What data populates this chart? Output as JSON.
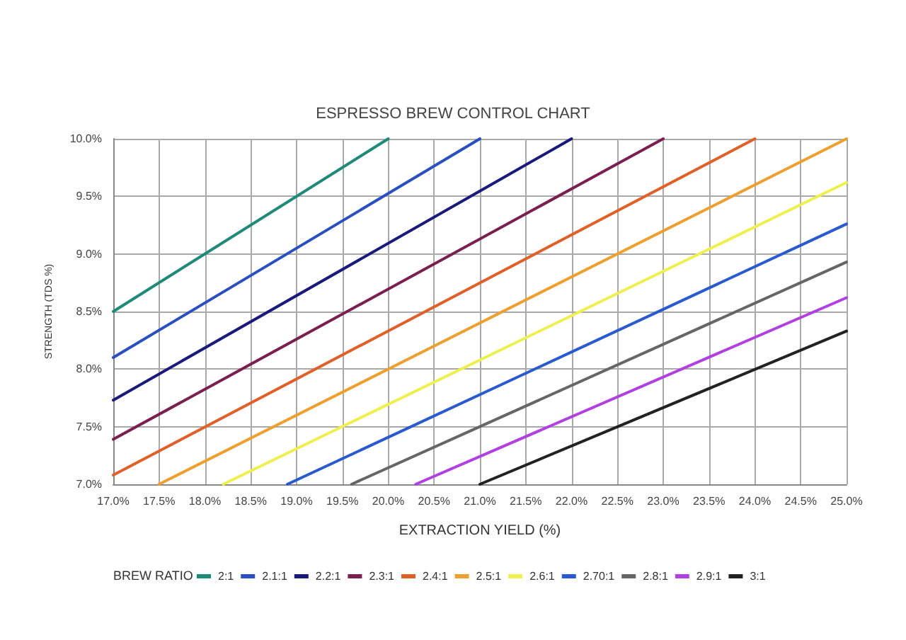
{
  "chart_data": {
    "type": "line",
    "title": "ESPRESSO BREW CONTROL CHART",
    "xlabel": "EXTRACTION YIELD (%)",
    "ylabel": "STRENGTH (TDS %)",
    "legend_title": "BREW RATIO",
    "legend": "bottom",
    "grid": true,
    "marker": "none",
    "line_style": "solid",
    "xlim": [
      17,
      25
    ],
    "ylim": [
      7,
      10
    ],
    "xticks": [
      {
        "value": 17,
        "label": "17.0%"
      },
      {
        "value": 17.5,
        "label": "17.5%"
      },
      {
        "value": 18,
        "label": "18.0%"
      },
      {
        "value": 18.5,
        "label": "18.5%"
      },
      {
        "value": 19,
        "label": "19.0%"
      },
      {
        "value": 19.5,
        "label": "19.5%"
      },
      {
        "value": 20,
        "label": "20.0%"
      },
      {
        "value": 20.5,
        "label": "20.5%"
      },
      {
        "value": 21,
        "label": "21.0%"
      },
      {
        "value": 21.5,
        "label": "21.5%"
      },
      {
        "value": 22,
        "label": "22.0%"
      },
      {
        "value": 22.5,
        "label": "22.5%"
      },
      {
        "value": 23,
        "label": "23.0%"
      },
      {
        "value": 23.5,
        "label": "23.5%"
      },
      {
        "value": 24,
        "label": "24.0%"
      },
      {
        "value": 24.5,
        "label": "24.5%"
      },
      {
        "value": 25,
        "label": "25.0%"
      }
    ],
    "yticks": [
      {
        "value": 7,
        "label": "7.0%"
      },
      {
        "value": 7.5,
        "label": "7.5%"
      },
      {
        "value": 8,
        "label": "8.0%"
      },
      {
        "value": 8.5,
        "label": "8.5%"
      },
      {
        "value": 9,
        "label": "9.0%"
      },
      {
        "value": 9.5,
        "label": "9.5%"
      },
      {
        "value": 10,
        "label": "10.0%"
      }
    ],
    "series": [
      {
        "name": "2:1",
        "color": "#1f8a7a",
        "x": [
          17,
          20
        ],
        "values": [
          8.5,
          10
        ]
      },
      {
        "name": "2.1:1",
        "color": "#2a4fc0",
        "x": [
          17,
          21
        ],
        "values": [
          8.1,
          10
        ]
      },
      {
        "name": "2.2:1",
        "color": "#1a1a7a",
        "x": [
          17,
          22
        ],
        "values": [
          7.73,
          10
        ]
      },
      {
        "name": "2.3:1",
        "color": "#7a2050",
        "x": [
          17,
          23
        ],
        "values": [
          7.39,
          10
        ]
      },
      {
        "name": "2.4:1",
        "color": "#e0602a",
        "x": [
          17,
          24
        ],
        "values": [
          7.08,
          10
        ]
      },
      {
        "name": "2.5:1",
        "color": "#eda030",
        "x": [
          17.5,
          25
        ],
        "values": [
          7,
          10
        ]
      },
      {
        "name": "2.6:1",
        "color": "#eef050",
        "x": [
          18.2,
          25
        ],
        "values": [
          7,
          9.62
        ]
      },
      {
        "name": "2.70:1",
        "color": "#2a5ad0",
        "x": [
          18.9,
          25
        ],
        "values": [
          7,
          9.26
        ]
      },
      {
        "name": "2.8:1",
        "color": "#666666",
        "x": [
          19.6,
          25
        ],
        "values": [
          7,
          8.93
        ]
      },
      {
        "name": "2.9:1",
        "color": "#b040e0",
        "x": [
          20.3,
          25
        ],
        "values": [
          7,
          8.62
        ]
      },
      {
        "name": "3:1",
        "color": "#222222",
        "x": [
          21,
          25
        ],
        "values": [
          7,
          8.33
        ]
      }
    ]
  }
}
